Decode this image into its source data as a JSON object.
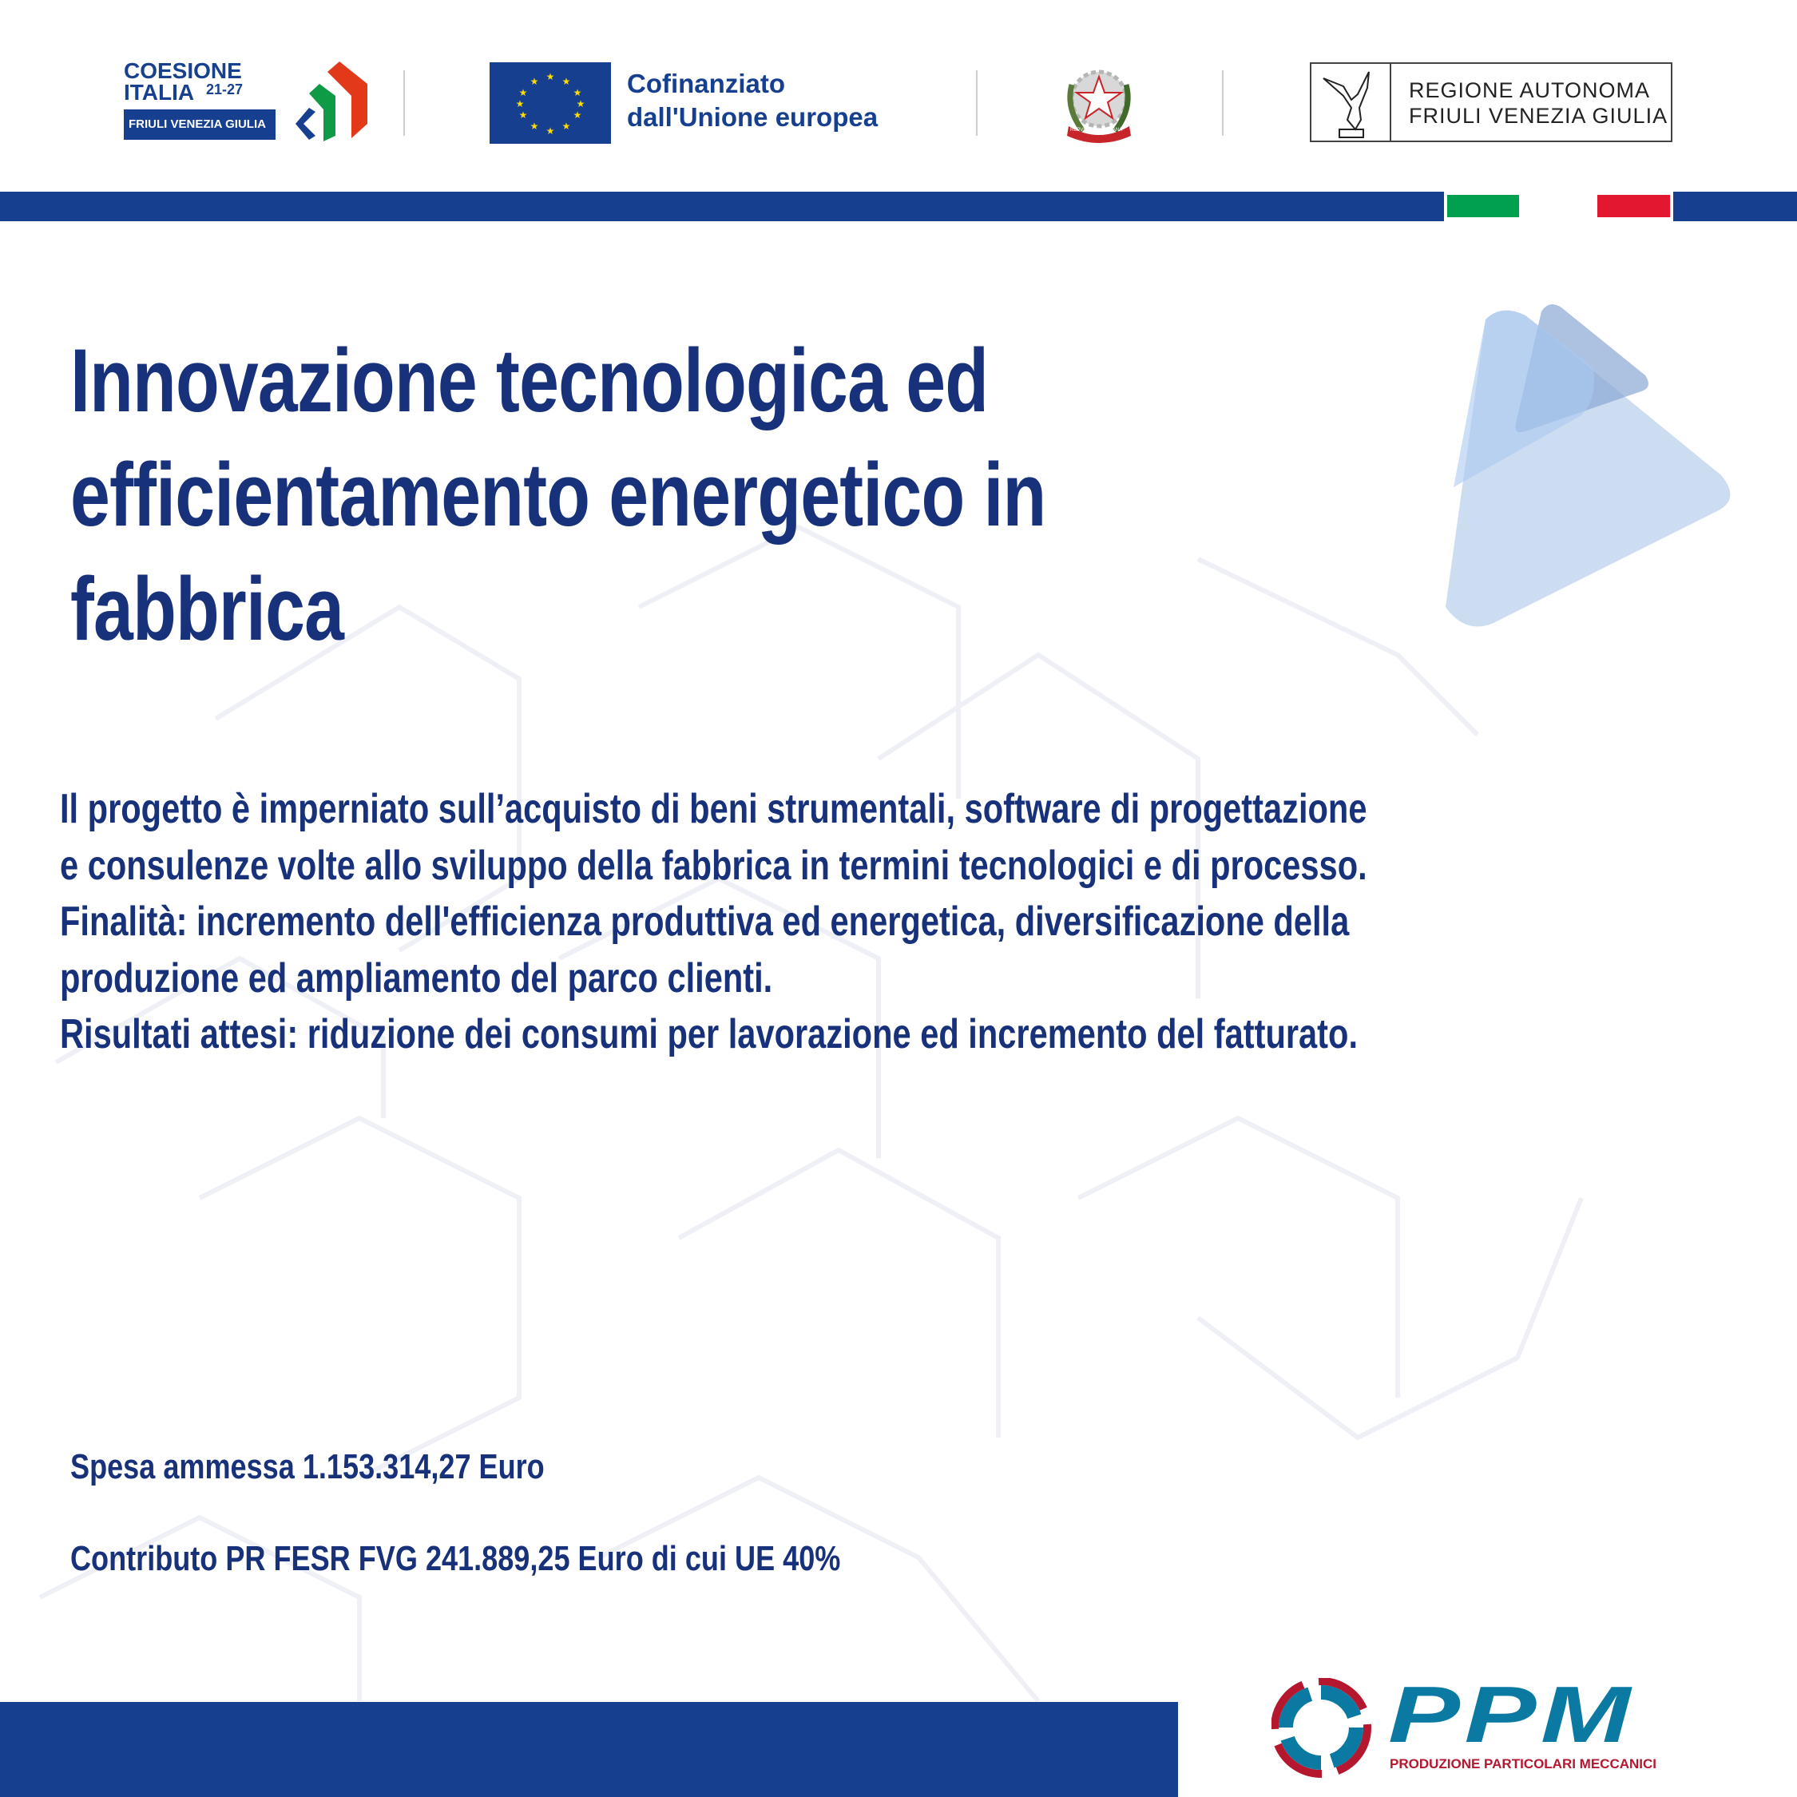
{
  "header": {
    "coesione_logo": {
      "line1": "COESIONE",
      "line2": "ITALIA",
      "years": "21-27",
      "region": "FRIULI VENEZIA GIULIA"
    },
    "eu_logo": {
      "line1": "Cofinanziato",
      "line2": "dall'Unione europea"
    },
    "emblem": {
      "ribbon": "REPVBBLICA ITALIANA"
    },
    "region_logo": {
      "line1": "REGIONE AUTONOMA",
      "line2": "FRIULI VENEZIA GIULIA"
    }
  },
  "title_lines": [
    "Innovazione tecnologica ed",
    "efficientamento energetico in",
    "fabbrica"
  ],
  "body_lines": [
    "Il progetto è imperniato sull’acquisto di beni strumentali, software di progettazione",
    "e consulenze volte allo sviluppo della fabbrica in termini tecnologici e di processo.",
    "Finalità: incremento dell'efficienza produttiva ed energetica, diversificazione della",
    "produzione ed ampliamento del parco clienti.",
    "Risultati attesi: riduzione dei consumi per lavorazione ed incremento del fatturato."
  ],
  "funding": {
    "spesa": "Spesa ammessa 1.153.314,27 Euro",
    "contributo": "Contributo PR FESR FVG 241.889,25 Euro di cui UE 40%"
  },
  "company_logo": {
    "name": "PPM",
    "tagline": "PRODUZIONE PARTICOLARI MECCANICI"
  },
  "colors": {
    "brand_blue": "#16408f",
    "text_blue": "#17317a",
    "flag_green": "#00a04f",
    "flag_red": "#e3172f",
    "ppm_teal": "#0a7aa3",
    "ppm_red": "#b5172f"
  }
}
